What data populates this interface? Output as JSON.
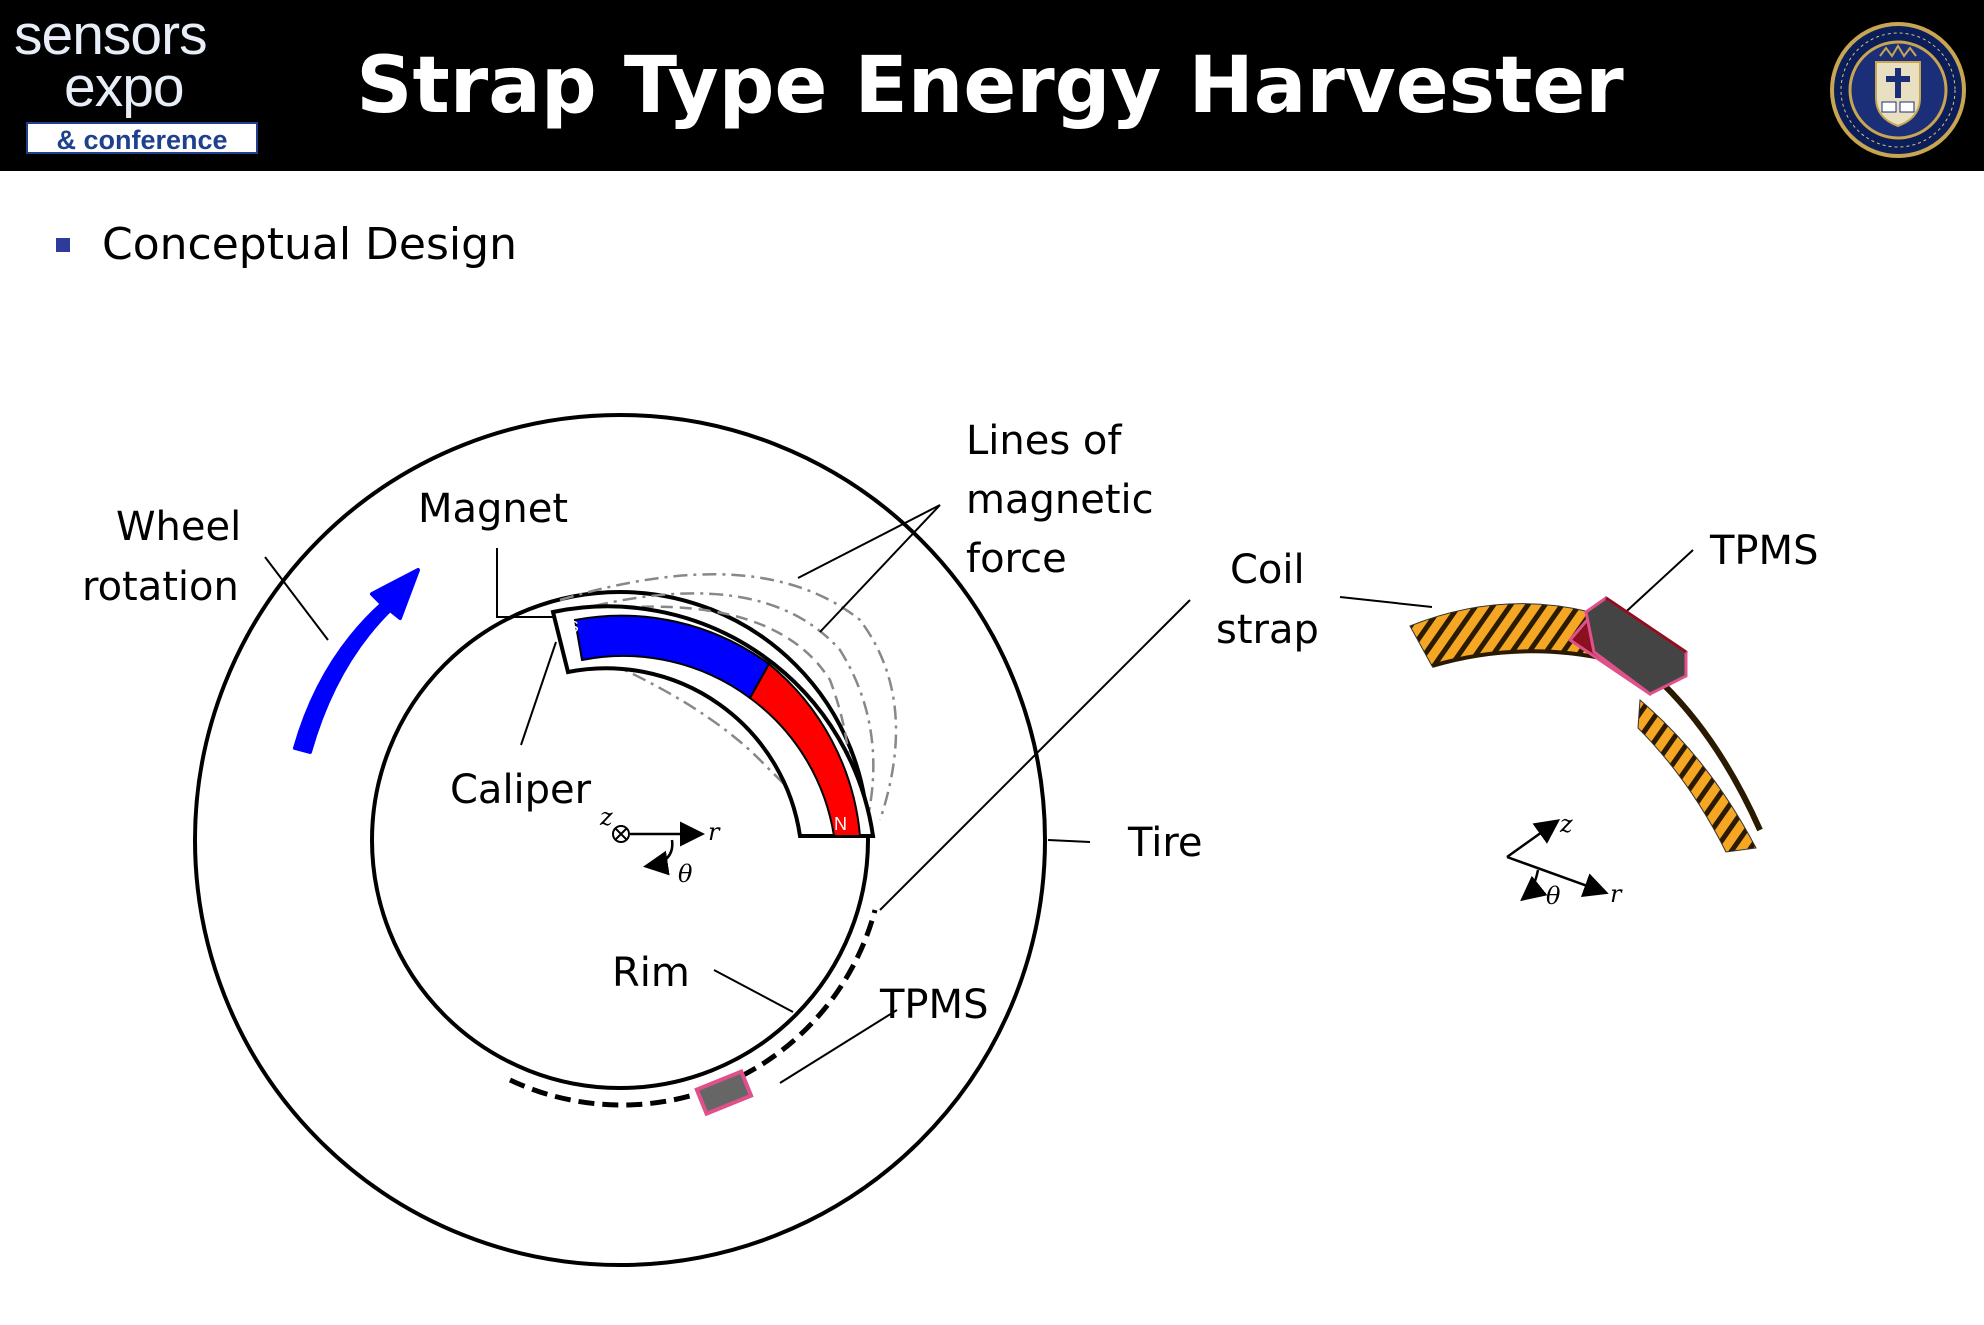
{
  "header": {
    "logo": {
      "line1": "sensors",
      "line2": "expo",
      "line3": "& conference"
    },
    "title": "Strap Type Energy Harvester",
    "seal_icon": "university-seal-icon"
  },
  "bullet": {
    "text": "Conceptual Design"
  },
  "diagram": {
    "wheel_rotation": [
      "Wheel",
      "rotation"
    ],
    "magnet": "Magnet",
    "lines_of_magnetic_force": [
      "Lines of",
      "magnetic",
      "force"
    ],
    "coil_strap": [
      "Coil",
      "strap"
    ],
    "caliper": "Caliper",
    "tire": "Tire",
    "rim": "Rim",
    "tpms_left": "TPMS",
    "tpms_right": "TPMS",
    "magnet_pole_s": "S",
    "magnet_pole_n": "N",
    "axes_left": {
      "z": "z",
      "r": "r",
      "theta": "θ"
    },
    "axes_right": {
      "z": "z",
      "r": "r",
      "theta": "θ"
    }
  },
  "colors": {
    "header_bg": "#000000",
    "magnet_south": "#0000ff",
    "magnet_north": "#ff0000",
    "rotation_arrow": "#0000ff",
    "coil_strap_fill": "#f5a623",
    "tpms_box": "#5a5a5a",
    "tpms_border": "#e0508a",
    "bullet": "#2e3a9c"
  }
}
